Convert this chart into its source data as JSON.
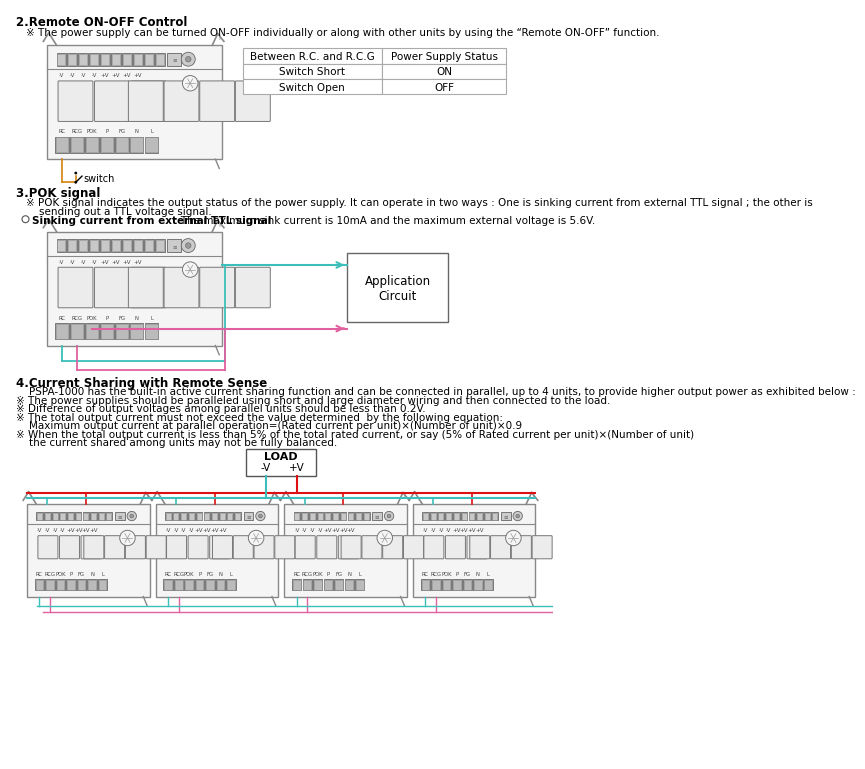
{
  "bg_color": "#ffffff",
  "section2_title": "2.Remote ON-OFF Control",
  "section2_note": "※ The power supply can be turned ON-OFF individually or along with other units by using the “Remote ON-OFF” function.",
  "table_headers": [
    "Between R.C. and R.C.G",
    "Power Supply Status"
  ],
  "table_rows": [
    [
      "Switch Short",
      "ON"
    ],
    [
      "Switch Open",
      "OFF"
    ]
  ],
  "section3_title": "3.POK signal",
  "section3_note1a": "※ POK signal indicates the output status of the power supply. It can operate in two ways : One is sinking current from external TTL signal ; the other is",
  "section3_note1b": "    sending out a TTL voltage signal.",
  "section3_note2_bold": "Sinking current from external TTL signal",
  "section3_note2_rest": ": The maximum sink current is 10mA and the maximum external voltage is 5.6V.",
  "section4_title": "4.Current Sharing with Remote Sense",
  "section4_note0": "    PSPA-1000 has the built-in active current sharing function and can be connected in parallel, up to 4 units, to provide higher output power as exhibited below :",
  "section4_note1": "※ The power supplies should be paralleled using short and large diameter wiring and then connected to the load.",
  "section4_note2": "※ Difference of output voltages among parallel units should be less than 0.2V.",
  "section4_note3": "※ The total output current must not exceed the value determined  by the following equation:",
  "section4_note4": "    Maximum output current at parallel operation=(Rated current per unit)×(Number of unit)×0.9",
  "section4_note5": "※ When the total output current is less than 5% of the total rated current, or say (5% of Rated current per unit)×(Number of unit)",
  "section4_note6": "    the current shared among units may not be fully balanced.",
  "color_teal": "#3cbfba",
  "color_pink": "#e060a0",
  "color_orange": "#d4830a",
  "color_red": "#dd1111",
  "color_gray_line": "#888888",
  "color_gray_box": "#e8e8e8",
  "color_dark": "#444444"
}
